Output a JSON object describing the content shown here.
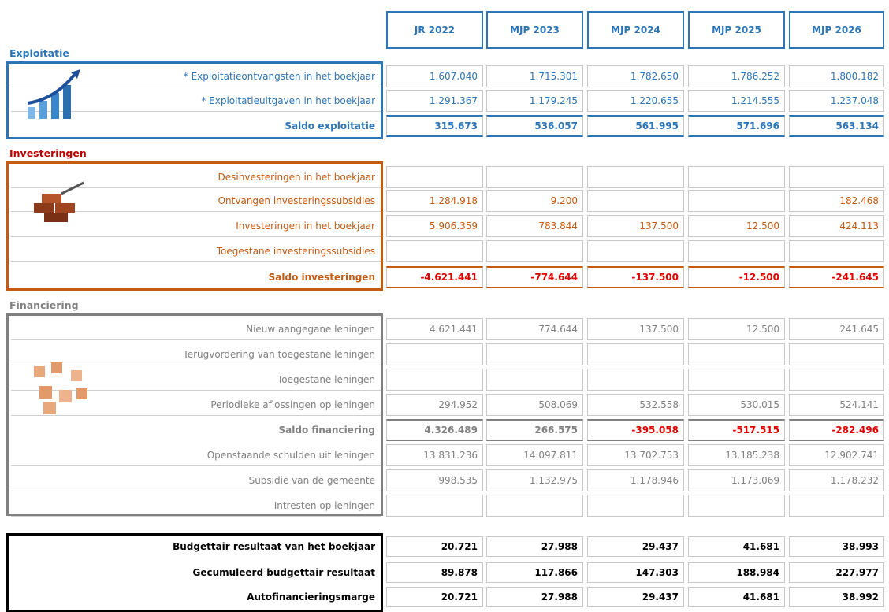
{
  "columns": [
    "JR 2022",
    "MJP 2023",
    "MJP 2024",
    "MJP 2025",
    "MJP 2026"
  ],
  "sections": [
    {
      "title": "Exploitatie",
      "rows": [
        {
          "label": "* Exploitatieontvangsten in het boekjaar",
          "values": [
            "1.607.040",
            "1.715.301",
            "1.782.650",
            "1.786.252",
            "1.800.182"
          ]
        },
        {
          "label": "* Exploitatieuitgaven in het boekjaar",
          "values": [
            "1.291.367",
            "1.179.245",
            "1.220.655",
            "1.214.555",
            "1.237.048"
          ]
        },
        {
          "label": "Saldo exploitatie",
          "values": [
            "315.673",
            "536.057",
            "561.995",
            "571.696",
            "563.134"
          ]
        }
      ]
    },
    {
      "title": "Investeringen",
      "rows": [
        {
          "label": "Desinvesteringen in het boekjaar",
          "values": [
            null,
            null,
            null,
            null,
            null
          ]
        },
        {
          "label": "Ontvangen investeringssubsidies",
          "values": [
            "1.284.918",
            "9.200",
            null,
            null,
            "182.468"
          ]
        },
        {
          "label": "Investeringen in het boekjaar",
          "values": [
            "5.906.359",
            "783.844",
            "137.500",
            "12.500",
            "424.113"
          ]
        },
        {
          "label": "Toegestane investeringssubsidies",
          "values": [
            null,
            null,
            null,
            null,
            null
          ]
        },
        {
          "label": "Saldo investeringen",
          "values": [
            "-4.621.441",
            "-774.644",
            "-137.500",
            "-12.500",
            "-241.645"
          ]
        }
      ]
    },
    {
      "title": "Financiering",
      "rows": [
        {
          "label": "Nieuw aangegane leningen",
          "values": [
            "4.621.441",
            "774.644",
            "137.500",
            "12.500",
            "241.645"
          ]
        },
        {
          "label": "Terugvordering van toegestane leningen",
          "values": [
            null,
            null,
            null,
            null,
            null
          ]
        },
        {
          "label": "Toegestane leningen",
          "values": [
            null,
            null,
            null,
            null,
            null
          ]
        },
        {
          "label": "Periodieke aflossingen op leningen",
          "values": [
            "294.952",
            "508.069",
            "532.558",
            "530.015",
            "524.141"
          ]
        },
        {
          "label": "Saldo financiering",
          "values": [
            "4.326.489",
            "266.575",
            "-395.058",
            "-517.515",
            "-282.496"
          ]
        },
        {
          "label": "Openstaande schulden uit leningen",
          "values": [
            "13.831.236",
            "14.097.811",
            "13.702.753",
            "13.185.238",
            "12.902.741"
          ]
        },
        {
          "label": "Subsidie van de gemeente",
          "values": [
            "998.535",
            "1.132.975",
            "1.178.946",
            "1.173.069",
            "1.178.232"
          ]
        },
        {
          "label": "Intresten op leningen",
          "values": [
            null,
            null,
            null,
            null,
            null
          ]
        }
      ]
    }
  ],
  "results": [
    {
      "label": "Budgettair resultaat van het boekjaar",
      "values": [
        "20.721",
        "27.988",
        "29.437",
        "41.681",
        "38.993"
      ]
    },
    {
      "label": "Gecumuleerd budgettair resultaat",
      "values": [
        "89.878",
        "117.866",
        "147.303",
        "188.984",
        "227.977"
      ]
    },
    {
      "label": "Autofinancieringsmarge",
      "values": [
        "20.721",
        "27.988",
        "29.437",
        "41.681",
        "38.992"
      ]
    }
  ]
}
